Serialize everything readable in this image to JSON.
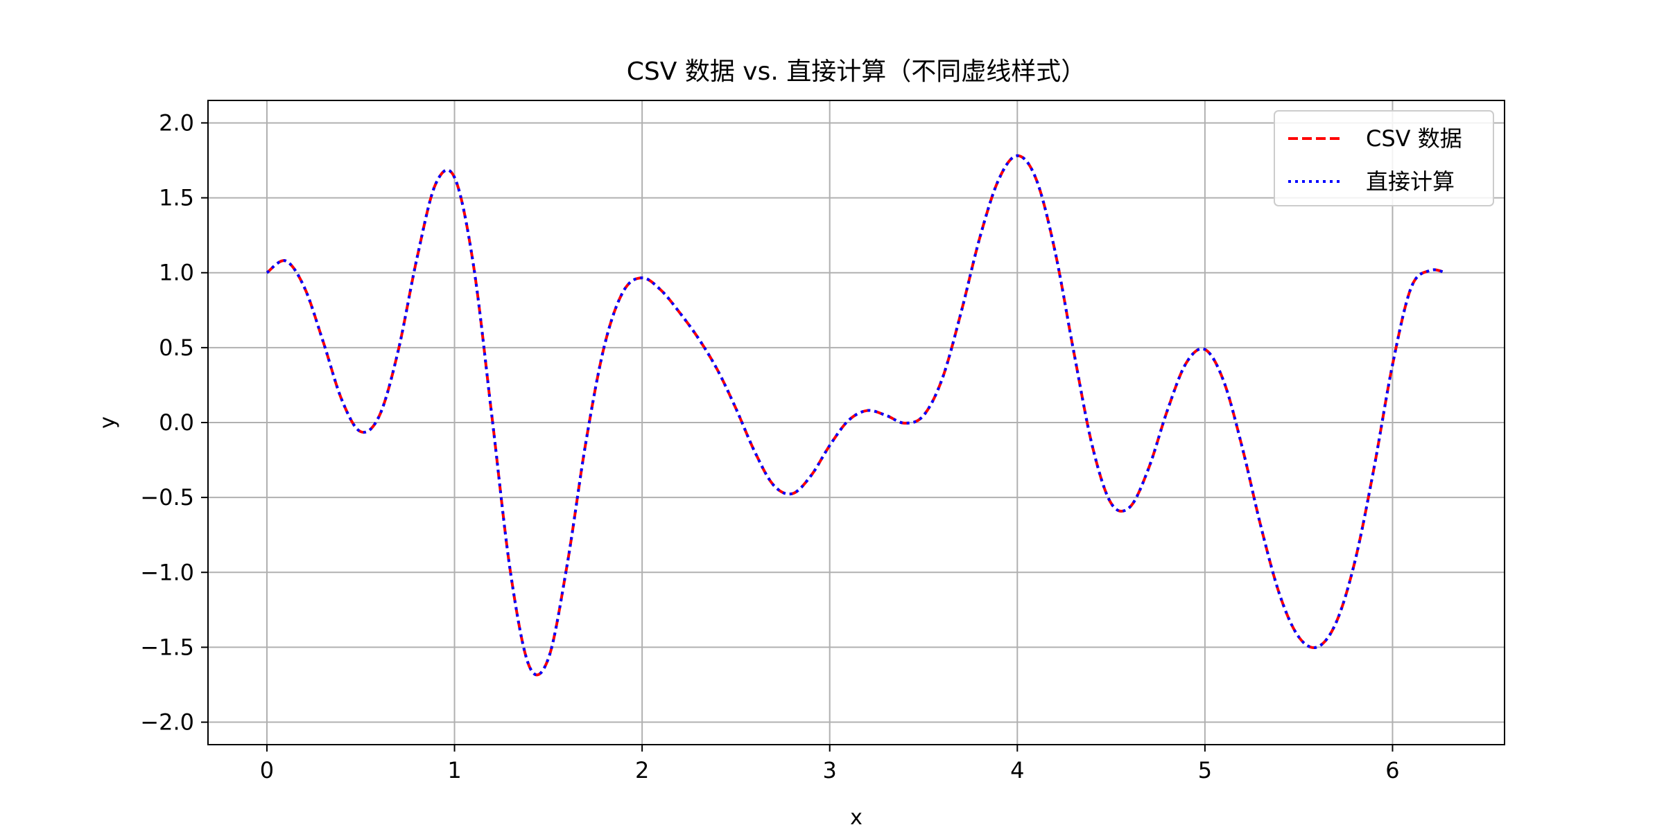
{
  "chart_data": {
    "type": "line",
    "title": "CSV 数据 vs. 直接计算（不同虚线样式）",
    "xlabel": "x",
    "ylabel": "y",
    "xlim": [
      -0.314,
      6.597
    ],
    "ylim": [
      -2.15,
      2.15
    ],
    "xticks": [
      0,
      1,
      2,
      3,
      4,
      5,
      6
    ],
    "yticks": [
      2.0,
      1.5,
      1.0,
      0.5,
      0.0,
      -0.5,
      -1.0,
      -1.5,
      -2.0
    ],
    "xtick_labels": [
      "0",
      "1",
      "2",
      "3",
      "4",
      "5",
      "6"
    ],
    "ytick_labels": [
      "2.0",
      "1.5",
      "1.0",
      "0.5",
      "0.0",
      "−0.5",
      "−1.0",
      "−1.5",
      "−2.0"
    ],
    "grid": true,
    "legend_position": "top-right",
    "x": [
      0.0,
      0.1,
      0.2,
      0.3,
      0.4,
      0.5,
      0.6,
      0.7,
      0.8,
      0.9,
      1.0,
      1.1,
      1.2,
      1.3,
      1.4,
      1.5,
      1.6,
      1.7,
      1.8,
      1.9,
      2.0,
      2.1,
      2.2,
      2.3,
      2.4,
      2.5,
      2.6,
      2.7,
      2.8,
      2.9,
      3.0,
      3.1,
      3.2,
      3.3,
      3.4,
      3.5,
      3.6,
      3.7,
      3.8,
      3.9,
      4.0,
      4.1,
      4.2,
      4.3,
      4.4,
      4.5,
      4.6,
      4.7,
      4.8,
      4.9,
      5.0,
      5.1,
      5.2,
      5.3,
      5.4,
      5.5,
      5.6,
      5.7,
      5.8,
      5.9,
      6.0,
      6.1,
      6.2,
      6.283
    ],
    "series": [
      {
        "name": "CSV 数据",
        "color": "#ff0000",
        "line_style": "dashed",
        "values": [
          1.0,
          1.079,
          0.901,
          0.539,
          0.149,
          -0.061,
          0.047,
          0.48,
          1.098,
          1.594,
          1.636,
          1.059,
          0.034,
          -1.014,
          -1.631,
          -1.576,
          -0.952,
          -0.133,
          0.518,
          0.876,
          0.966,
          0.884,
          0.734,
          0.562,
          0.355,
          0.094,
          -0.194,
          -0.417,
          -0.475,
          -0.355,
          -0.153,
          0.014,
          0.08,
          0.048,
          -0.004,
          0.047,
          0.293,
          0.734,
          1.234,
          1.62,
          1.781,
          1.626,
          1.149,
          0.478,
          -0.158,
          -0.539,
          -0.564,
          -0.305,
          0.082,
          0.397,
          0.488,
          0.276,
          -0.172,
          -0.702,
          -1.155,
          -1.431,
          -1.498,
          -1.333,
          -0.924,
          -0.312,
          0.386,
          0.903,
          1.015,
          1.0
        ]
      },
      {
        "name": "直接计算",
        "color": "#0000ff",
        "line_style": "dotted",
        "values": [
          1.0,
          1.079,
          0.901,
          0.539,
          0.149,
          -0.061,
          0.047,
          0.48,
          1.098,
          1.594,
          1.636,
          1.059,
          0.034,
          -1.014,
          -1.631,
          -1.576,
          -0.952,
          -0.133,
          0.518,
          0.876,
          0.966,
          0.884,
          0.734,
          0.562,
          0.355,
          0.094,
          -0.194,
          -0.417,
          -0.475,
          -0.355,
          -0.153,
          0.014,
          0.08,
          0.048,
          -0.004,
          0.047,
          0.293,
          0.734,
          1.234,
          1.62,
          1.781,
          1.626,
          1.149,
          0.478,
          -0.158,
          -0.539,
          -0.564,
          -0.305,
          0.082,
          0.397,
          0.488,
          0.276,
          -0.172,
          -0.702,
          -1.155,
          -1.431,
          -1.498,
          -1.333,
          -0.924,
          -0.312,
          0.386,
          0.903,
          1.015,
          1.0
        ]
      }
    ]
  }
}
